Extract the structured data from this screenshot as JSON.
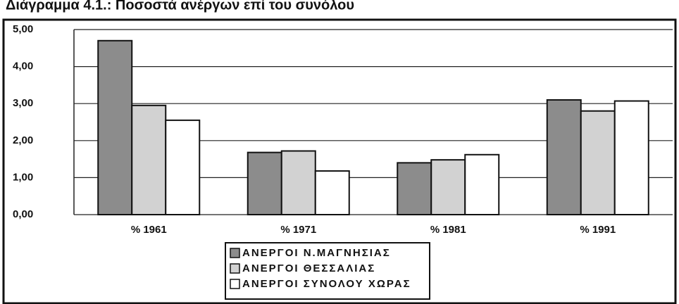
{
  "chart_data": {
    "type": "bar",
    "title": "Διάγραμμα 4.1.: Ποσοστά ανέργων επί του συνόλου",
    "categories": [
      "% 1961",
      "% 1971",
      "% 1981",
      "% 1991"
    ],
    "series": [
      {
        "name": "ΑΝΕΡΓΟΙ Ν.ΜΑΓΝΗΣΙΑΣ",
        "color": "#8c8c8c",
        "values": [
          4.7,
          1.68,
          1.4,
          3.1
        ]
      },
      {
        "name": "ΑΝΕΡΓΟΙ ΘΕΣΣΑΛΙΑΣ",
        "color": "#d2d2d2",
        "values": [
          2.95,
          1.72,
          1.48,
          2.8
        ]
      },
      {
        "name": "ΑΝΕΡΓΟΙ ΣΥΝΟΛΟΥ ΧΩΡΑΣ",
        "color": "#ffffff",
        "values": [
          2.55,
          1.18,
          1.62,
          3.07
        ]
      }
    ],
    "ylim": [
      0,
      5
    ],
    "yticks": [
      {
        "value": 0,
        "label": "0,00"
      },
      {
        "value": 1,
        "label": "1,00"
      },
      {
        "value": 2,
        "label": "2,00"
      },
      {
        "value": 3,
        "label": "3,00"
      },
      {
        "value": 4,
        "label": "4,00"
      },
      {
        "value": 5,
        "label": "5,00"
      }
    ],
    "grid": true
  }
}
